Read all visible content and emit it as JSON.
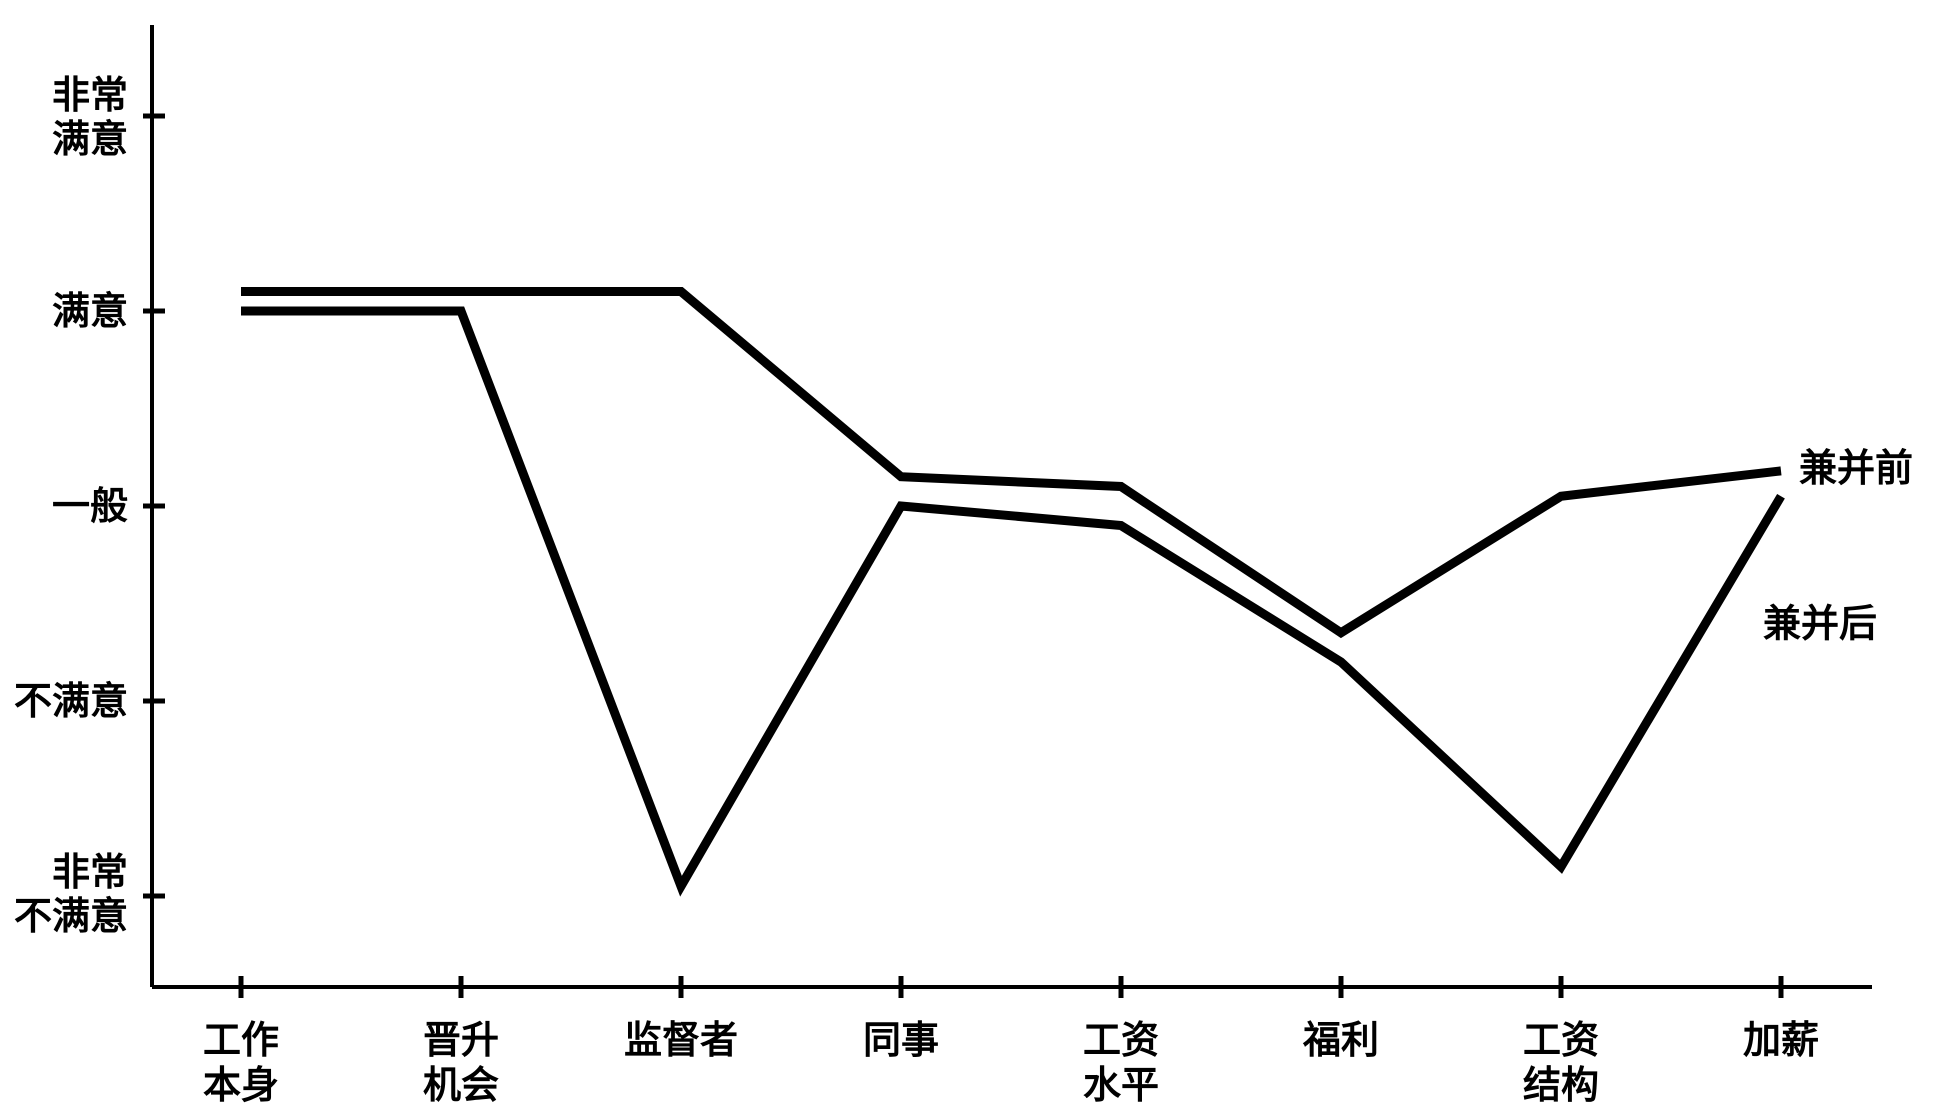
{
  "chart_data": {
    "type": "line",
    "categories": [
      [
        "工作",
        "本身"
      ],
      [
        "晋升",
        "机会"
      ],
      [
        "监督者"
      ],
      [
        "同事"
      ],
      [
        "工资",
        "水平"
      ],
      [
        "福利"
      ],
      [
        "工资",
        "结构"
      ],
      [
        "加薪"
      ]
    ],
    "y_levels": [
      [
        "非常",
        "不满意"
      ],
      [
        "不满意"
      ],
      [
        "一般"
      ],
      [
        "满意"
      ],
      [
        "非常",
        "满意"
      ]
    ],
    "ylim": [
      1,
      5
    ],
    "series": [
      {
        "name": "兼并前",
        "values": [
          4.1,
          4.1,
          4.1,
          3.15,
          3.1,
          2.35,
          3.05,
          3.18
        ]
      },
      {
        "name": "兼并后",
        "values": [
          4.0,
          4.0,
          1.05,
          3.0,
          2.9,
          2.2,
          1.15,
          3.05
        ]
      }
    ],
    "grid": false,
    "legend": "right (labels next to line ends)"
  }
}
